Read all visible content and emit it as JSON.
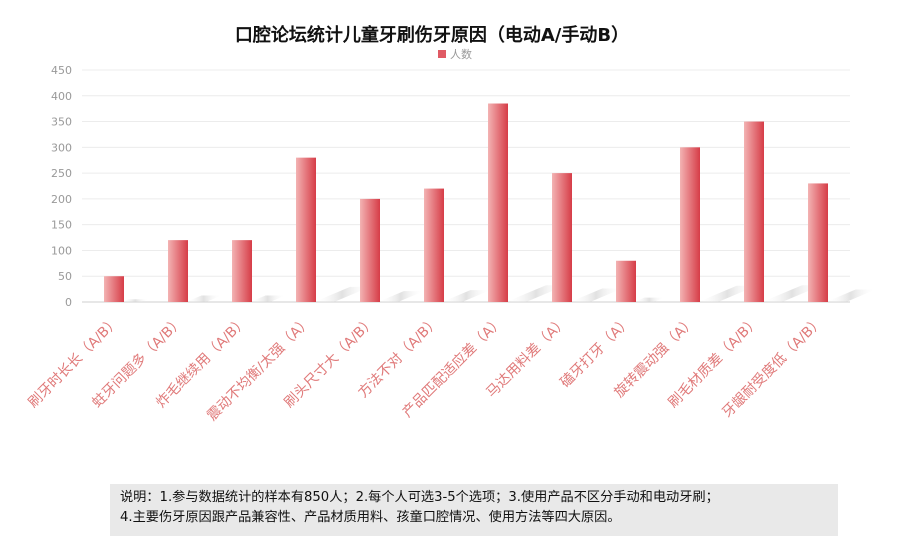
{
  "chart_data": {
    "type": "bar",
    "title": "口腔论坛统计儿童牙刷伤牙原因（电动A/手动B）",
    "legend": [
      "人数"
    ],
    "legend_position": "top-center",
    "categories": [
      "刷牙时长长（A/B）",
      "蛀牙问题多（A/B）",
      "炸毛继续用（A/B）",
      "震动不均衡/太强（A）",
      "刷头尺寸大（A/B）",
      "方法不对（A/B）",
      "产品匹配适应差（A）",
      "马达用料差（A）",
      "磕牙打牙（A）",
      "旋转震动强（A）",
      "刷毛材质差（A/B）",
      "牙龈耐受度低（A/B）"
    ],
    "series": [
      {
        "name": "人数",
        "values": [
          50,
          120,
          120,
          280,
          200,
          220,
          385,
          250,
          80,
          300,
          350,
          230
        ]
      }
    ],
    "ylim": [
      0,
      450
    ],
    "yticks": [
      0,
      50,
      100,
      150,
      200,
      250,
      300,
      350,
      400,
      450
    ],
    "xlabel": "",
    "ylabel": "",
    "grid": true,
    "colors": {
      "bar_light": "#f0a8a8",
      "bar_dark": "#d9404a",
      "legend": "#e05a64",
      "tick": "#e07a7a"
    }
  },
  "note": {
    "line1": "说明：1.参与数据统计的样本有850人；2.每个人可选3-5个选项；3.使用产品不区分手动和电动牙刷；",
    "line2": "4.主要伤牙原因跟产品兼容性、产品材质用料、孩童口腔情况、使用方法等四大原因。"
  }
}
